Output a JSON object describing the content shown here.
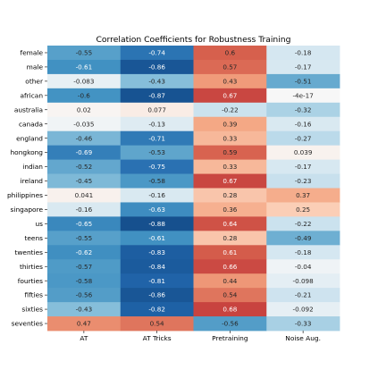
{
  "chart_data": {
    "type": "heatmap",
    "title": "Correlation Coefficients for Robustness Training",
    "columns": [
      "AT",
      "AT Tricks",
      "Pretraining",
      "Noise Aug."
    ],
    "rows": [
      "female",
      "male",
      "other",
      "african",
      "australia",
      "canada",
      "england",
      "hongkong",
      "indian",
      "ireland",
      "philippines",
      "singapore",
      "us",
      "teens",
      "twenties",
      "thirties",
      "fourties",
      "fifties",
      "sixties",
      "seventies"
    ],
    "values": [
      [
        -0.55,
        -0.74,
        0.6,
        -0.18
      ],
      [
        -0.61,
        -0.86,
        0.57,
        -0.17
      ],
      [
        -0.083,
        -0.43,
        0.43,
        -0.51
      ],
      [
        -0.6,
        -0.87,
        0.67,
        -4e-17
      ],
      [
        0.02,
        0.077,
        -0.22,
        -0.32
      ],
      [
        -0.035,
        -0.13,
        0.39,
        -0.16
      ],
      [
        -0.46,
        -0.71,
        0.33,
        -0.27
      ],
      [
        -0.69,
        -0.53,
        0.59,
        0.039
      ],
      [
        -0.52,
        -0.75,
        0.33,
        -0.17
      ],
      [
        -0.45,
        -0.58,
        0.67,
        -0.23
      ],
      [
        0.041,
        -0.16,
        0.28,
        0.37
      ],
      [
        -0.16,
        -0.63,
        0.36,
        0.25
      ],
      [
        -0.65,
        -0.88,
        0.64,
        -0.22
      ],
      [
        -0.55,
        -0.61,
        0.28,
        -0.49
      ],
      [
        -0.62,
        -0.83,
        0.61,
        -0.18
      ],
      [
        -0.57,
        -0.84,
        0.66,
        -0.04
      ],
      [
        -0.58,
        -0.81,
        0.44,
        -0.098
      ],
      [
        -0.56,
        -0.86,
        0.54,
        -0.21
      ],
      [
        -0.43,
        -0.82,
        0.68,
        -0.092
      ],
      [
        0.47,
        0.54,
        -0.56,
        -0.33
      ]
    ],
    "labels": [
      [
        "-0.55",
        "-0.74",
        "0.6",
        "-0.18"
      ],
      [
        "-0.61",
        "-0.86",
        "0.57",
        "-0.17"
      ],
      [
        "-0.083",
        "-0.43",
        "0.43",
        "-0.51"
      ],
      [
        "-0.6",
        "-0.87",
        "0.67",
        "-4e-17"
      ],
      [
        "0.02",
        "0.077",
        "-0.22",
        "-0.32"
      ],
      [
        "-0.035",
        "-0.13",
        "0.39",
        "-0.16"
      ],
      [
        "-0.46",
        "-0.71",
        "0.33",
        "-0.27"
      ],
      [
        "-0.69",
        "-0.53",
        "0.59",
        "0.039"
      ],
      [
        "-0.52",
        "-0.75",
        "0.33",
        "-0.17"
      ],
      [
        "-0.45",
        "-0.58",
        "0.67",
        "-0.23"
      ],
      [
        "0.041",
        "-0.16",
        "0.28",
        "0.37"
      ],
      [
        "-0.16",
        "-0.63",
        "0.36",
        "0.25"
      ],
      [
        "-0.65",
        "-0.88",
        "0.64",
        "-0.22"
      ],
      [
        "-0.55",
        "-0.61",
        "0.28",
        "-0.49"
      ],
      [
        "-0.62",
        "-0.83",
        "0.61",
        "-0.18"
      ],
      [
        "-0.57",
        "-0.84",
        "0.66",
        "-0.04"
      ],
      [
        "-0.58",
        "-0.81",
        "0.44",
        "-0.098"
      ],
      [
        "-0.56",
        "-0.86",
        "0.54",
        "-0.21"
      ],
      [
        "-0.43",
        "-0.82",
        "0.68",
        "-0.092"
      ],
      [
        "0.47",
        "0.54",
        "-0.56",
        "-0.33"
      ]
    ],
    "colormap": "RdBu_r",
    "vmin": -1,
    "vmax": 1,
    "colorbar": false
  }
}
